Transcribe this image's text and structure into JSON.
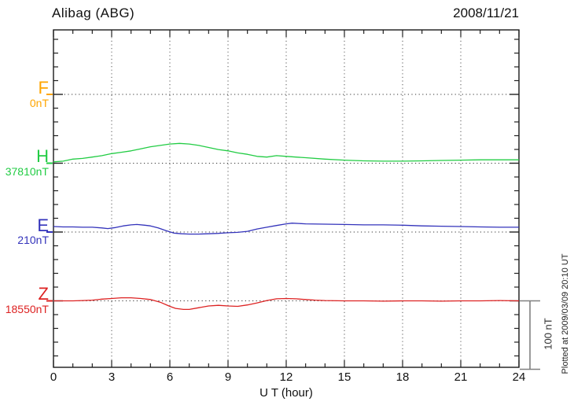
{
  "header": {
    "title": "Alibag (ABG)",
    "date": "2008/11/21"
  },
  "footer": {
    "plotted_at": "Plotted at 2009/03/09 20:10 UT"
  },
  "chart_data": {
    "type": "line",
    "title": "Alibag (ABG)",
    "subtitle": "2008/11/21",
    "xlabel": "U T (hour)",
    "ylabel": "",
    "x_range": [
      0,
      24
    ],
    "x_ticks": [
      0,
      3,
      6,
      9,
      12,
      15,
      18,
      21,
      24
    ],
    "grid": "dotted vertical lines every 3 hours, dotted horizontal baseline per component",
    "legend_position": "left margin, one colored letter per component",
    "scale_bar": {
      "label": "100 nT",
      "nT": 100
    },
    "minor_tick_nT": 20,
    "series": [
      {
        "name": "F",
        "base_label": "0nT",
        "base_value_nT": 0,
        "color": "#FFA500",
        "points": []
      },
      {
        "name": "H",
        "base_label": "37810nT",
        "base_value_nT": 37810,
        "color": "#22CC44",
        "points": [
          [
            0,
            2
          ],
          [
            0.5,
            3
          ],
          [
            1,
            6
          ],
          [
            1.5,
            7
          ],
          [
            2,
            9
          ],
          [
            2.5,
            11
          ],
          [
            3,
            14
          ],
          [
            3.5,
            16
          ],
          [
            4,
            18
          ],
          [
            4.5,
            21
          ],
          [
            5,
            24
          ],
          [
            5.5,
            26
          ],
          [
            6,
            28
          ],
          [
            6.5,
            29
          ],
          [
            7,
            28
          ],
          [
            7.5,
            26
          ],
          [
            8,
            23
          ],
          [
            8.5,
            20
          ],
          [
            9,
            18
          ],
          [
            9.5,
            15
          ],
          [
            10,
            13
          ],
          [
            10.5,
            10
          ],
          [
            11,
            9
          ],
          [
            11.5,
            11
          ],
          [
            12,
            10
          ],
          [
            12.5,
            9
          ],
          [
            13,
            8
          ],
          [
            14,
            6
          ],
          [
            15,
            4.5
          ],
          [
            16,
            3.5
          ],
          [
            17,
            3
          ],
          [
            18,
            3
          ],
          [
            19,
            3.5
          ],
          [
            20,
            4
          ],
          [
            21,
            4.5
          ],
          [
            22,
            5
          ],
          [
            23,
            5
          ],
          [
            24,
            5
          ]
        ]
      },
      {
        "name": "E",
        "base_label": "210nT",
        "base_value_nT": 210,
        "color": "#3333BB",
        "points": [
          [
            0,
            8
          ],
          [
            0.5,
            7.5
          ],
          [
            1,
            7.5
          ],
          [
            1.5,
            7
          ],
          [
            2,
            7
          ],
          [
            2.5,
            6
          ],
          [
            2.8,
            5
          ],
          [
            3.2,
            6.5
          ],
          [
            3.6,
            9
          ],
          [
            4,
            10.5
          ],
          [
            4.3,
            11
          ],
          [
            4.7,
            10
          ],
          [
            5,
            9
          ],
          [
            5.4,
            6
          ],
          [
            5.8,
            2
          ],
          [
            6.2,
            -1.5
          ],
          [
            6.6,
            -2.5
          ],
          [
            7,
            -3
          ],
          [
            7.5,
            -3
          ],
          [
            8,
            -2.5
          ],
          [
            8.5,
            -2
          ],
          [
            9,
            -1
          ],
          [
            9.5,
            -0.5
          ],
          [
            10,
            1
          ],
          [
            10.5,
            4.5
          ],
          [
            11,
            7
          ],
          [
            11.5,
            9.5
          ],
          [
            12,
            12
          ],
          [
            12.3,
            13
          ],
          [
            13,
            12
          ],
          [
            14,
            11.5
          ],
          [
            15,
            11
          ],
          [
            16,
            10.5
          ],
          [
            17,
            10.5
          ],
          [
            18,
            10
          ],
          [
            19,
            9
          ],
          [
            20,
            8.5
          ],
          [
            21,
            8
          ],
          [
            22,
            7.5
          ],
          [
            23,
            7
          ],
          [
            24,
            7
          ]
        ]
      },
      {
        "name": "Z",
        "base_label": "18550nT",
        "base_value_nT": 18550,
        "color": "#DD2222",
        "points": [
          [
            0,
            0
          ],
          [
            0.5,
            0
          ],
          [
            1,
            0
          ],
          [
            1.5,
            0.5
          ],
          [
            2,
            1
          ],
          [
            2.5,
            2.5
          ],
          [
            3,
            3.5
          ],
          [
            3.5,
            4.5
          ],
          [
            4,
            4.5
          ],
          [
            4.5,
            3.5
          ],
          [
            5,
            2
          ],
          [
            5.5,
            -2
          ],
          [
            6,
            -8
          ],
          [
            6.3,
            -11
          ],
          [
            6.7,
            -12.5
          ],
          [
            7,
            -12.5
          ],
          [
            7.5,
            -10
          ],
          [
            8,
            -7.5
          ],
          [
            8.5,
            -6.5
          ],
          [
            9,
            -7.5
          ],
          [
            9.5,
            -8
          ],
          [
            10,
            -6
          ],
          [
            10.5,
            -3
          ],
          [
            11,
            0.5
          ],
          [
            11.5,
            3
          ],
          [
            12,
            3.5
          ],
          [
            12.5,
            3
          ],
          [
            13,
            2
          ],
          [
            13.5,
            1
          ],
          [
            14,
            0.5
          ],
          [
            15,
            0
          ],
          [
            16,
            0
          ],
          [
            17,
            -0.5
          ],
          [
            18,
            0
          ],
          [
            19,
            0
          ],
          [
            20,
            -0.5
          ],
          [
            21,
            0
          ],
          [
            22,
            0
          ],
          [
            23,
            0.5
          ],
          [
            24,
            0
          ]
        ]
      }
    ]
  }
}
